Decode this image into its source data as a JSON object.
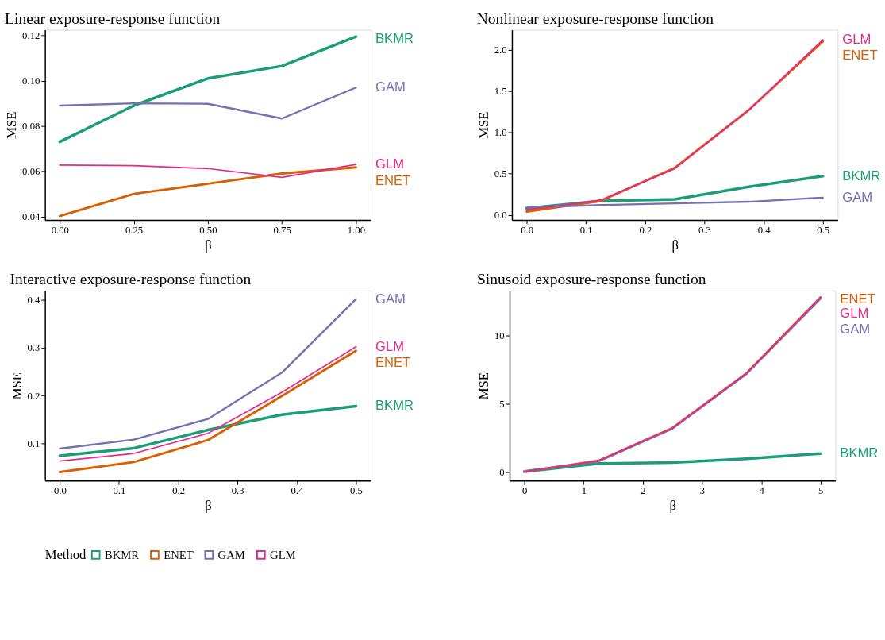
{
  "chart_data": [
    {
      "type": "line",
      "title": "Linear exposure-response function",
      "xlabel": "β",
      "ylabel": "MSE",
      "x": [
        0,
        0.25,
        0.5,
        0.75,
        1
      ],
      "xlim": [
        -0.05,
        1.05
      ],
      "xticks": [
        {
          "value": 0,
          "label": "0.00"
        },
        {
          "value": 0.25,
          "label": "0.25"
        },
        {
          "value": 0.5,
          "label": "0.50"
        },
        {
          "value": 0.75,
          "label": "0.75"
        },
        {
          "value": 1,
          "label": "1.00"
        }
      ],
      "ylim": [
        0.0385,
        0.1225
      ],
      "yticks": [
        {
          "value": 0.04,
          "label": "0.04"
        },
        {
          "value": 0.06,
          "label": "0.06"
        },
        {
          "value": 0.08,
          "label": "0.08"
        },
        {
          "value": 0.1,
          "label": "0.10"
        },
        {
          "value": 0.12,
          "label": "0.12"
        }
      ],
      "grid": false,
      "series": [
        {
          "name": "BKMR",
          "color": "#1b9e77",
          "values": [
            0.073,
            0.089,
            0.101,
            0.1065,
            0.1195
          ]
        },
        {
          "name": "ENET",
          "color": "#d95f02",
          "values": [
            0.0402,
            0.05,
            0.0545,
            0.059,
            0.0617
          ]
        },
        {
          "name": "GAM",
          "color": "#7570b3",
          "values": [
            0.089,
            0.09,
            0.0898,
            0.0833,
            0.097
          ]
        },
        {
          "name": "GLM",
          "color": "#e7298a",
          "values": [
            0.0627,
            0.0625,
            0.0612,
            0.0573,
            0.063
          ]
        }
      ]
    },
    {
      "type": "line",
      "title": "Nonlinear exposure-response function",
      "xlabel": "β",
      "ylabel": "MSE",
      "x": [
        0,
        0.125,
        0.25,
        0.375,
        0.5
      ],
      "xlim": [
        -0.025,
        0.525
      ],
      "xticks": [
        {
          "value": 0,
          "label": "0.0"
        },
        0.1,
        0.2,
        0.3,
        0.4,
        {
          "value": 0.5,
          "label": "0.5"
        }
      ],
      "ylim": [
        -0.06,
        2.24
      ],
      "yticks": [
        {
          "value": 0,
          "label": "0.0"
        },
        0.5,
        {
          "value": 1,
          "label": "1.0"
        },
        1.5,
        {
          "value": 2,
          "label": "2.0"
        }
      ],
      "grid": false,
      "series": [
        {
          "name": "BKMR",
          "color": "#1b9e77",
          "values": [
            0.08,
            0.17,
            0.19,
            0.34,
            0.47
          ]
        },
        {
          "name": "ENET",
          "color": "#d95f02",
          "values": [
            0.04,
            0.17,
            0.57,
            1.27,
            2.1
          ]
        },
        {
          "name": "GAM",
          "color": "#7570b3",
          "values": [
            0.09,
            0.12,
            0.14,
            0.16,
            0.21
          ]
        },
        {
          "name": "GLM",
          "color": "#e7298a",
          "values": [
            0.06,
            0.18,
            0.56,
            1.27,
            2.12
          ]
        }
      ]
    },
    {
      "type": "line",
      "title": "Interactive exposure-response function",
      "xlabel": "β",
      "ylabel": "MSE",
      "x": [
        0,
        0.125,
        0.25,
        0.375,
        0.5
      ],
      "xlim": [
        -0.025,
        0.525
      ],
      "xticks": [
        {
          "value": 0,
          "label": "0.0"
        },
        0.1,
        0.2,
        0.3,
        0.4,
        {
          "value": 0.5,
          "label": "0.5"
        }
      ],
      "ylim": [
        0.022,
        0.42
      ],
      "yticks": [
        0.1,
        0.2,
        0.3,
        0.4
      ],
      "grid": false,
      "series": [
        {
          "name": "BKMR",
          "color": "#1b9e77",
          "values": [
            0.074,
            0.09,
            0.128,
            0.16,
            0.178
          ]
        },
        {
          "name": "ENET",
          "color": "#d95f02",
          "values": [
            0.04,
            0.061,
            0.107,
            0.199,
            0.294
          ]
        },
        {
          "name": "GAM",
          "color": "#7570b3",
          "values": [
            0.089,
            0.108,
            0.151,
            0.248,
            0.402
          ]
        },
        {
          "name": "GLM",
          "color": "#e7298a",
          "values": [
            0.063,
            0.079,
            0.121,
            0.207,
            0.302
          ]
        }
      ]
    },
    {
      "type": "line",
      "title": "Sinusoid exposure-response function",
      "xlabel": "β",
      "ylabel": "MSE",
      "x": [
        0,
        1.25,
        2.5,
        3.75,
        5
      ],
      "xlim": [
        -0.25,
        5.25
      ],
      "xticks": [
        0,
        1,
        2,
        3,
        4,
        5
      ],
      "ylim": [
        -0.6,
        13.3
      ],
      "yticks": [
        0,
        5,
        10
      ],
      "grid": false,
      "legend": "bottom",
      "legend_title": "Method",
      "series": [
        {
          "name": "BKMR",
          "color": "#1b9e77",
          "values": [
            0.05,
            0.65,
            0.72,
            1.0,
            1.38
          ]
        },
        {
          "name": "ENET",
          "color": "#d95f02",
          "values": [
            0.05,
            0.85,
            3.25,
            7.25,
            12.8
          ]
        },
        {
          "name": "GAM",
          "color": "#7570b3",
          "values": [
            0.1,
            0.8,
            3.2,
            7.2,
            12.7
          ]
        },
        {
          "name": "GLM",
          "color": "#e7298a",
          "values": [
            0.05,
            0.85,
            3.25,
            7.25,
            12.8
          ]
        }
      ]
    }
  ]
}
